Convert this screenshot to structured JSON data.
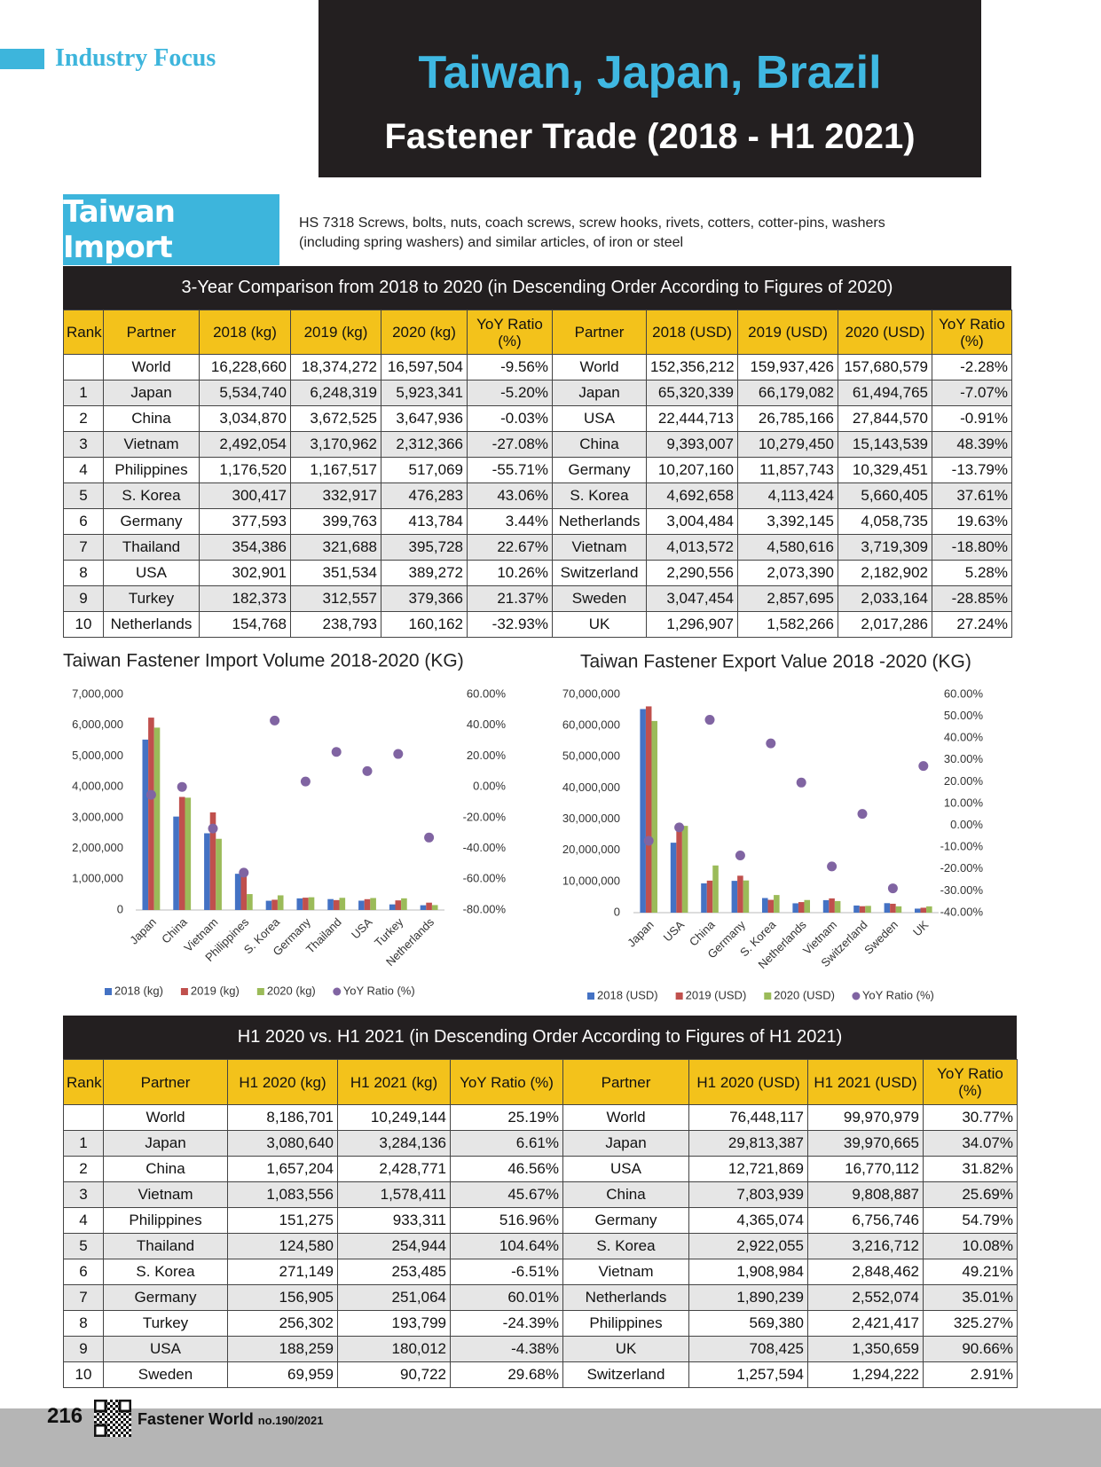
{
  "header": {
    "section": "Industry Focus",
    "title": "Taiwan, Japan, Brazil",
    "subtitle": "Fastener Trade (2018 - H1 2021)"
  },
  "section": {
    "title": "Taiwan Import",
    "description": [
      "HS 7318 Screws, bolts, nuts, coach screws, screw hooks, rivets, cotters, cotter-pins, washers",
      "(including spring washers) and similar articles, of iron or steel"
    ]
  },
  "table1": {
    "title": "3-Year Comparison from 2018 to 2020 (in Descending Order According to Figures of 2020)",
    "columns": [
      "Rank",
      "Partner",
      "2018 (kg)",
      "2019 (kg)",
      "2020 (kg)",
      "YoY Ratio (%)",
      "Partner",
      "2018 (USD)",
      "2019 (USD)",
      "2020 (USD)",
      "YoY Ratio (%)"
    ],
    "rows": [
      [
        null,
        "World",
        "16,228,660",
        "18,374,272",
        "16,597,504",
        "-9.56%",
        "World",
        "152,356,212",
        "159,937,426",
        "157,680,579",
        "-2.28%"
      ],
      [
        "1",
        "Japan",
        "5,534,740",
        "6,248,319",
        "5,923,341",
        "-5.20%",
        "Japan",
        "65,320,339",
        "66,179,082",
        "61,494,765",
        "-7.07%"
      ],
      [
        "2",
        "China",
        "3,034,870",
        "3,672,525",
        "3,647,936",
        "-0.03%",
        "USA",
        "22,444,713",
        "26,785,166",
        "27,844,570",
        "-0.91%"
      ],
      [
        "3",
        "Vietnam",
        "2,492,054",
        "3,170,962",
        "2,312,366",
        "-27.08%",
        "China",
        "9,393,007",
        "10,279,450",
        "15,143,539",
        "48.39%"
      ],
      [
        "4",
        "Philippines",
        "1,176,520",
        "1,167,517",
        "517,069",
        "-55.71%",
        "Germany",
        "10,207,160",
        "11,857,743",
        "10,329,451",
        "-13.79%"
      ],
      [
        "5",
        "S. Korea",
        "300,417",
        "332,917",
        "476,283",
        "43.06%",
        "S. Korea",
        "4,692,658",
        "4,113,424",
        "5,660,405",
        "37.61%"
      ],
      [
        "6",
        "Germany",
        "377,593",
        "399,763",
        "413,784",
        "3.44%",
        "Netherlands",
        "3,004,484",
        "3,392,145",
        "4,058,735",
        "19.63%"
      ],
      [
        "7",
        "Thailand",
        "354,386",
        "321,688",
        "395,728",
        "22.67%",
        "Vietnam",
        "4,013,572",
        "4,580,616",
        "3,719,309",
        "-18.80%"
      ],
      [
        "8",
        "USA",
        "302,901",
        "351,534",
        "389,272",
        "10.26%",
        "Switzerland",
        "2,290,556",
        "2,073,390",
        "2,182,902",
        "5.28%"
      ],
      [
        "9",
        "Turkey",
        "182,373",
        "312,557",
        "379,366",
        "21.37%",
        "Sweden",
        "3,047,454",
        "2,857,695",
        "2,033,164",
        "-28.85%"
      ],
      [
        "10",
        "Netherlands",
        "154,768",
        "238,793",
        "160,162",
        "-32.93%",
        "UK",
        "1,296,907",
        "1,582,266",
        "2,017,286",
        "27.24%"
      ]
    ]
  },
  "chart_data": [
    {
      "type": "bar",
      "title": "Taiwan Fastener Import Volume 2018-2020 (KG)",
      "categories": [
        "Japan",
        "China",
        "Vietnam",
        "Philippines",
        "S. Korea",
        "Germany",
        "Thailand",
        "USA",
        "Turkey",
        "Netherlands"
      ],
      "series": [
        {
          "name": "2018 (kg)",
          "color": "#4472c4",
          "values": [
            5534740,
            3034870,
            2492054,
            1176520,
            300417,
            377593,
            354386,
            302901,
            182373,
            154768
          ]
        },
        {
          "name": "2019 (kg)",
          "color": "#c0504d",
          "values": [
            6248319,
            3672525,
            3170962,
            1167517,
            332917,
            399763,
            321688,
            351534,
            312557,
            238793
          ]
        },
        {
          "name": "2020 (kg)",
          "color": "#9bbb59",
          "values": [
            5923341,
            3647936,
            2312366,
            517069,
            476283,
            413784,
            395728,
            389272,
            379366,
            160162
          ]
        },
        {
          "name": "YoY Ratio (%)",
          "color": "#8064a2",
          "axis": "y2",
          "values": [
            -5.2,
            -0.03,
            -27.08,
            -55.71,
            43.06,
            3.44,
            22.67,
            10.26,
            21.37,
            -32.93
          ]
        }
      ],
      "ylim": [
        0,
        7000000
      ],
      "yticks": [
        0,
        {
          "value": 1000000,
          "label": "1,000,000"
        },
        {
          "value": 2000000,
          "label": "2,000,000"
        },
        {
          "value": 3000000,
          "label": "3,000,000"
        },
        {
          "value": 4000000,
          "label": "4,000,000"
        },
        {
          "value": 5000000,
          "label": "5,000,000"
        },
        {
          "value": 6000000,
          "label": "6,000,000"
        },
        {
          "value": 7000000,
          "label": "7,000,000"
        }
      ],
      "y2lim": [
        -80,
        60
      ],
      "y2ticks": [
        {
          "value": -80,
          "label": "-80.00%"
        },
        {
          "value": -60,
          "label": "-60.00%"
        },
        {
          "value": -40,
          "label": "-40.00%"
        },
        {
          "value": -20,
          "label": "-20.00%"
        },
        {
          "value": 0,
          "label": "0.00%"
        },
        {
          "value": 20,
          "label": "20.00%"
        },
        {
          "value": 40,
          "label": "40.00%"
        },
        {
          "value": 60,
          "label": "60.00%"
        }
      ],
      "grid": false,
      "legend": "bottom"
    },
    {
      "type": "bar",
      "title": "Taiwan Fastener Export Value 2018 -2020 (KG)",
      "categories": [
        "Japan",
        "USA",
        "China",
        "Germany",
        "S. Korea",
        "Netherlands",
        "Vietnam",
        "Switzerland",
        "Sweden",
        "UK"
      ],
      "series": [
        {
          "name": "2018 (USD)",
          "color": "#4472c4",
          "values": [
            65320339,
            22444713,
            9393007,
            10207160,
            4692658,
            3004484,
            4013572,
            2290556,
            3047454,
            1296907
          ]
        },
        {
          "name": "2019 (USD)",
          "color": "#c0504d",
          "values": [
            66179082,
            26785166,
            10279450,
            11857743,
            4113424,
            3392145,
            4580616,
            2073390,
            2857695,
            1582266
          ]
        },
        {
          "name": "2020 (USD)",
          "color": "#9bbb59",
          "values": [
            61494765,
            27844570,
            15143539,
            10329451,
            5660405,
            4058735,
            3719309,
            2182902,
            2033164,
            2017286
          ]
        },
        {
          "name": "YoY Ratio (%)",
          "color": "#8064a2",
          "axis": "y2",
          "values": [
            -7.07,
            -0.91,
            48.39,
            -13.79,
            37.61,
            19.63,
            -18.8,
            5.28,
            -28.85,
            27.24
          ]
        }
      ],
      "ylim": [
        0,
        70000000
      ],
      "yticks": [
        0,
        {
          "value": 10000000,
          "label": "10,000,000"
        },
        {
          "value": 20000000,
          "label": "20,000,000"
        },
        {
          "value": 30000000,
          "label": "30,000,000"
        },
        {
          "value": 40000000,
          "label": "40,000,000"
        },
        {
          "value": 50000000,
          "label": "50,000,000"
        },
        {
          "value": 60000000,
          "label": "60,000,000"
        },
        {
          "value": 70000000,
          "label": "70,000,000"
        }
      ],
      "y2lim": [
        -40,
        60
      ],
      "y2ticks": [
        {
          "value": -40,
          "label": "-40.00%"
        },
        {
          "value": -30,
          "label": "-30.00%"
        },
        {
          "value": -20,
          "label": "-20.00%"
        },
        {
          "value": -10,
          "label": "-10.00%"
        },
        {
          "value": 0,
          "label": "0.00%"
        },
        {
          "value": 10,
          "label": "10.00%"
        },
        {
          "value": 20,
          "label": "20.00%"
        },
        {
          "value": 30,
          "label": "30.00%"
        },
        {
          "value": 40,
          "label": "40.00%"
        },
        {
          "value": 50,
          "label": "50.00%"
        },
        {
          "value": 60,
          "label": "60.00%"
        }
      ],
      "grid": false,
      "legend": "bottom"
    }
  ],
  "table2": {
    "title": "H1 2020 vs. H1 2021 (in Descending Order According to Figures of H1 2021)",
    "columns": [
      "Rank",
      "Partner",
      "H1 2020 (kg)",
      "H1 2021 (kg)",
      "YoY Ratio (%)",
      "Partner",
      "H1 2020 (USD)",
      "H1 2021 (USD)",
      "YoY Ratio (%)"
    ],
    "rows": [
      [
        null,
        "World",
        "8,186,701",
        "10,249,144",
        "25.19%",
        "World",
        "76,448,117",
        "99,970,979",
        "30.77%"
      ],
      [
        "1",
        "Japan",
        "3,080,640",
        "3,284,136",
        "6.61%",
        "Japan",
        "29,813,387",
        "39,970,665",
        "34.07%"
      ],
      [
        "2",
        "China",
        "1,657,204",
        "2,428,771",
        "46.56%",
        "USA",
        "12,721,869",
        "16,770,112",
        "31.82%"
      ],
      [
        "3",
        "Vietnam",
        "1,083,556",
        "1,578,411",
        "45.67%",
        "China",
        "7,803,939",
        "9,808,887",
        "25.69%"
      ],
      [
        "4",
        "Philippines",
        "151,275",
        "933,311",
        "516.96%",
        "Germany",
        "4,365,074",
        "6,756,746",
        "54.79%"
      ],
      [
        "5",
        "Thailand",
        "124,580",
        "254,944",
        "104.64%",
        "S. Korea",
        "2,922,055",
        "3,216,712",
        "10.08%"
      ],
      [
        "6",
        "S. Korea",
        "271,149",
        "253,485",
        "-6.51%",
        "Vietnam",
        "1,908,984",
        "2,848,462",
        "49.21%"
      ],
      [
        "7",
        "Germany",
        "156,905",
        "251,064",
        "60.01%",
        "Netherlands",
        "1,890,239",
        "2,552,074",
        "35.01%"
      ],
      [
        "8",
        "Turkey",
        "256,302",
        "193,799",
        "-24.39%",
        "Philippines",
        "569,380",
        "2,421,417",
        "325.27%"
      ],
      [
        "9",
        "USA",
        "188,259",
        "180,012",
        "-4.38%",
        "UK",
        "708,425",
        "1,350,659",
        "90.66%"
      ],
      [
        "10",
        "Sweden",
        "69,959",
        "90,722",
        "29.68%",
        "Switzerland",
        "1,257,594",
        "1,294,222",
        "2.91%"
      ]
    ]
  },
  "footer": {
    "page": "216",
    "magazine": "Fastener World",
    "issue": "no.190/2021"
  }
}
